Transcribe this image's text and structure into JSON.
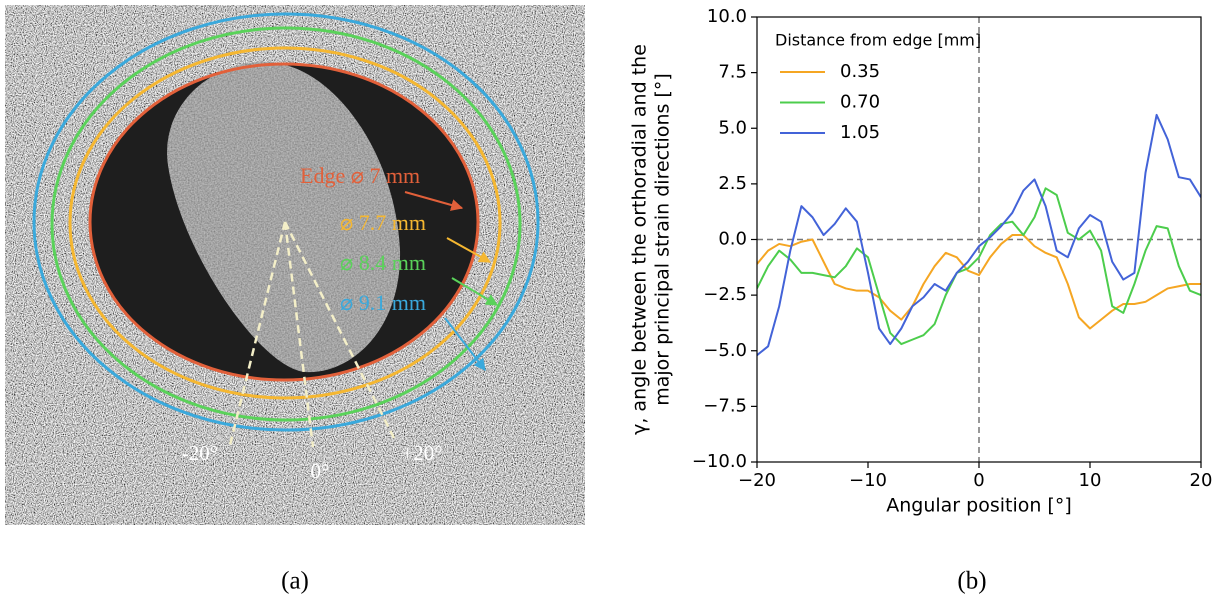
{
  "panel_a": {
    "labels": [
      "Edge ⌀ 7 mm",
      "⌀ 7.7 mm",
      "⌀ 8.4 mm",
      "⌀ 9.1 mm"
    ],
    "angles": [
      "-20°",
      "0°",
      "+20°"
    ]
  },
  "captions": [
    "(a)",
    "(b)"
  ],
  "chart_data": {
    "type": "line",
    "xlabel": "Angular position [°]",
    "ylabel": [
      "γ, angle between the orthoradial and the",
      "major principal strain directions [°]"
    ],
    "legend_title": "Distance from edge [mm]",
    "legend": "upper left",
    "x": [
      -20,
      -19,
      -18,
      -17,
      -16,
      -15,
      -14,
      -13,
      -12,
      -11,
      -10,
      -9,
      -8,
      -7,
      -6,
      -5,
      -4,
      -3,
      -2,
      -1,
      0,
      1,
      2,
      3,
      4,
      5,
      6,
      7,
      8,
      9,
      10,
      11,
      12,
      13,
      14,
      15,
      16,
      17,
      18,
      19,
      20
    ],
    "series": [
      {
        "name": "0.35",
        "color": "#f5a623",
        "values": [
          -1.1,
          -0.5,
          -0.2,
          -0.3,
          -0.1,
          0.0,
          -1.0,
          -2.0,
          -2.2,
          -2.3,
          -2.3,
          -2.6,
          -3.2,
          -3.6,
          -3.0,
          -2.0,
          -1.2,
          -0.6,
          -0.8,
          -1.4,
          -1.6,
          -0.8,
          -0.2,
          0.2,
          0.2,
          -0.3,
          -0.6,
          -0.8,
          -2.0,
          -3.5,
          -4.0,
          -3.6,
          -3.2,
          -2.9,
          -2.9,
          -2.8,
          -2.5,
          -2.2,
          -2.1,
          -2.0,
          -2.0
        ]
      },
      {
        "name": "0.70",
        "color": "#4ccd4c",
        "values": [
          -2.2,
          -1.2,
          -0.5,
          -0.9,
          -1.5,
          -1.5,
          -1.6,
          -1.7,
          -1.2,
          -0.4,
          -0.8,
          -2.5,
          -4.2,
          -4.7,
          -4.5,
          -4.3,
          -3.8,
          -2.5,
          -1.5,
          -1.3,
          -0.8,
          0.2,
          0.7,
          0.8,
          0.2,
          1.0,
          2.3,
          2.0,
          0.3,
          0.0,
          0.4,
          -0.5,
          -3.0,
          -3.3,
          -2.0,
          -0.5,
          0.6,
          0.5,
          -1.2,
          -2.3,
          -2.5
        ]
      },
      {
        "name": "1.05",
        "color": "#4363d8",
        "values": [
          -5.2,
          -4.8,
          -3.0,
          -0.5,
          1.5,
          1.0,
          0.2,
          0.7,
          1.4,
          0.8,
          -1.5,
          -4.0,
          -4.7,
          -4.0,
          -3.0,
          -2.6,
          -2.0,
          -2.3,
          -1.5,
          -1.0,
          -0.3,
          0.1,
          0.6,
          1.2,
          2.2,
          2.7,
          1.5,
          -0.5,
          -0.8,
          0.5,
          1.1,
          0.8,
          -1.0,
          -1.8,
          -1.5,
          3.0,
          5.6,
          4.5,
          2.8,
          2.7,
          1.9
        ]
      }
    ],
    "xlim": [
      -20,
      20
    ],
    "xticks": [
      {
        "value": -20,
        "label": "−20"
      },
      {
        "value": -10,
        "label": "−10"
      },
      0,
      10,
      20
    ],
    "ylim": [
      -10,
      10
    ],
    "yticks": [
      {
        "value": -10,
        "label": "−10.0"
      },
      {
        "value": -7.5,
        "label": "−7.5"
      },
      {
        "value": -5,
        "label": "−5.0"
      },
      {
        "value": -2.5,
        "label": "−2.5"
      },
      {
        "value": 0,
        "label": "0.0"
      },
      2.5,
      {
        "value": 5,
        "label": "5.0"
      },
      7.5,
      {
        "value": 10,
        "label": "10.0"
      }
    ],
    "hlines": [
      0
    ],
    "vlines": [
      0
    ],
    "grid": false
  }
}
